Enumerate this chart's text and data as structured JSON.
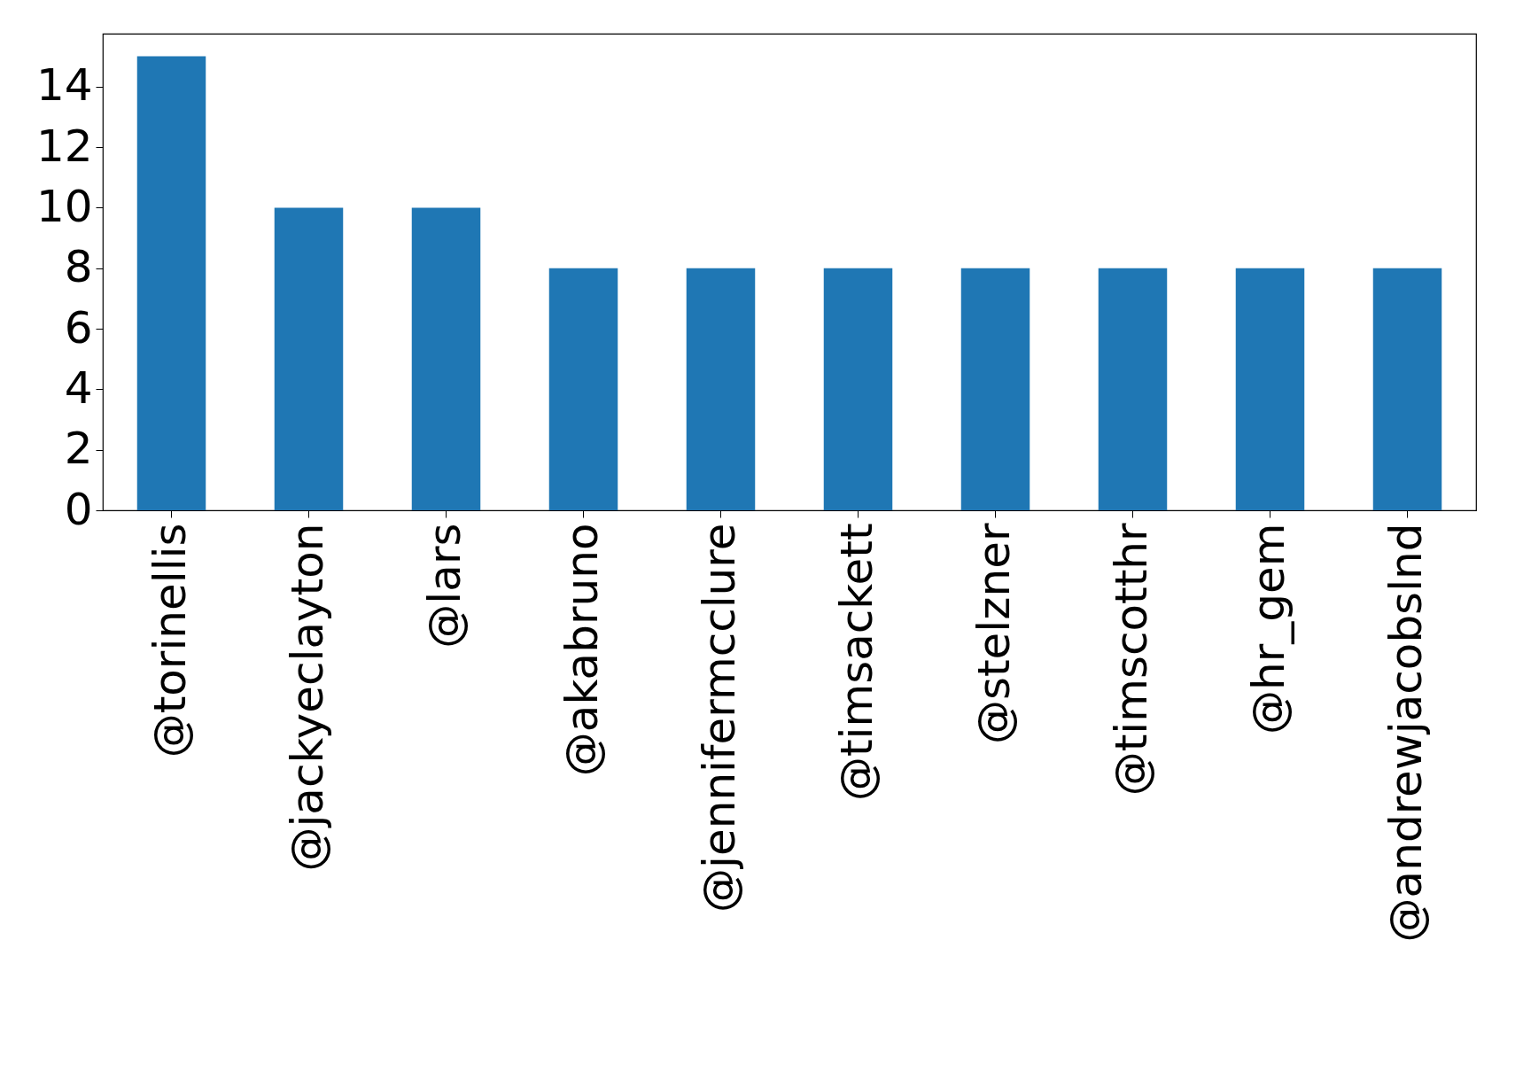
{
  "chart_data": {
    "type": "bar",
    "categories": [
      "@torinellis",
      "@jackyeclayton",
      "@lars",
      "@akabruno",
      "@jennifermcclure",
      "@timsackett",
      "@stelzner",
      "@timscotthr",
      "@hr_gem",
      "@andrewjacobslnd"
    ],
    "values": [
      15,
      10,
      10,
      8,
      8,
      8,
      8,
      8,
      8,
      8
    ],
    "color": "#1f77b4",
    "ylim": [
      0,
      15.75
    ],
    "yticks": [
      0,
      2,
      4,
      6,
      8,
      10,
      12,
      14
    ],
    "grid": false
  }
}
